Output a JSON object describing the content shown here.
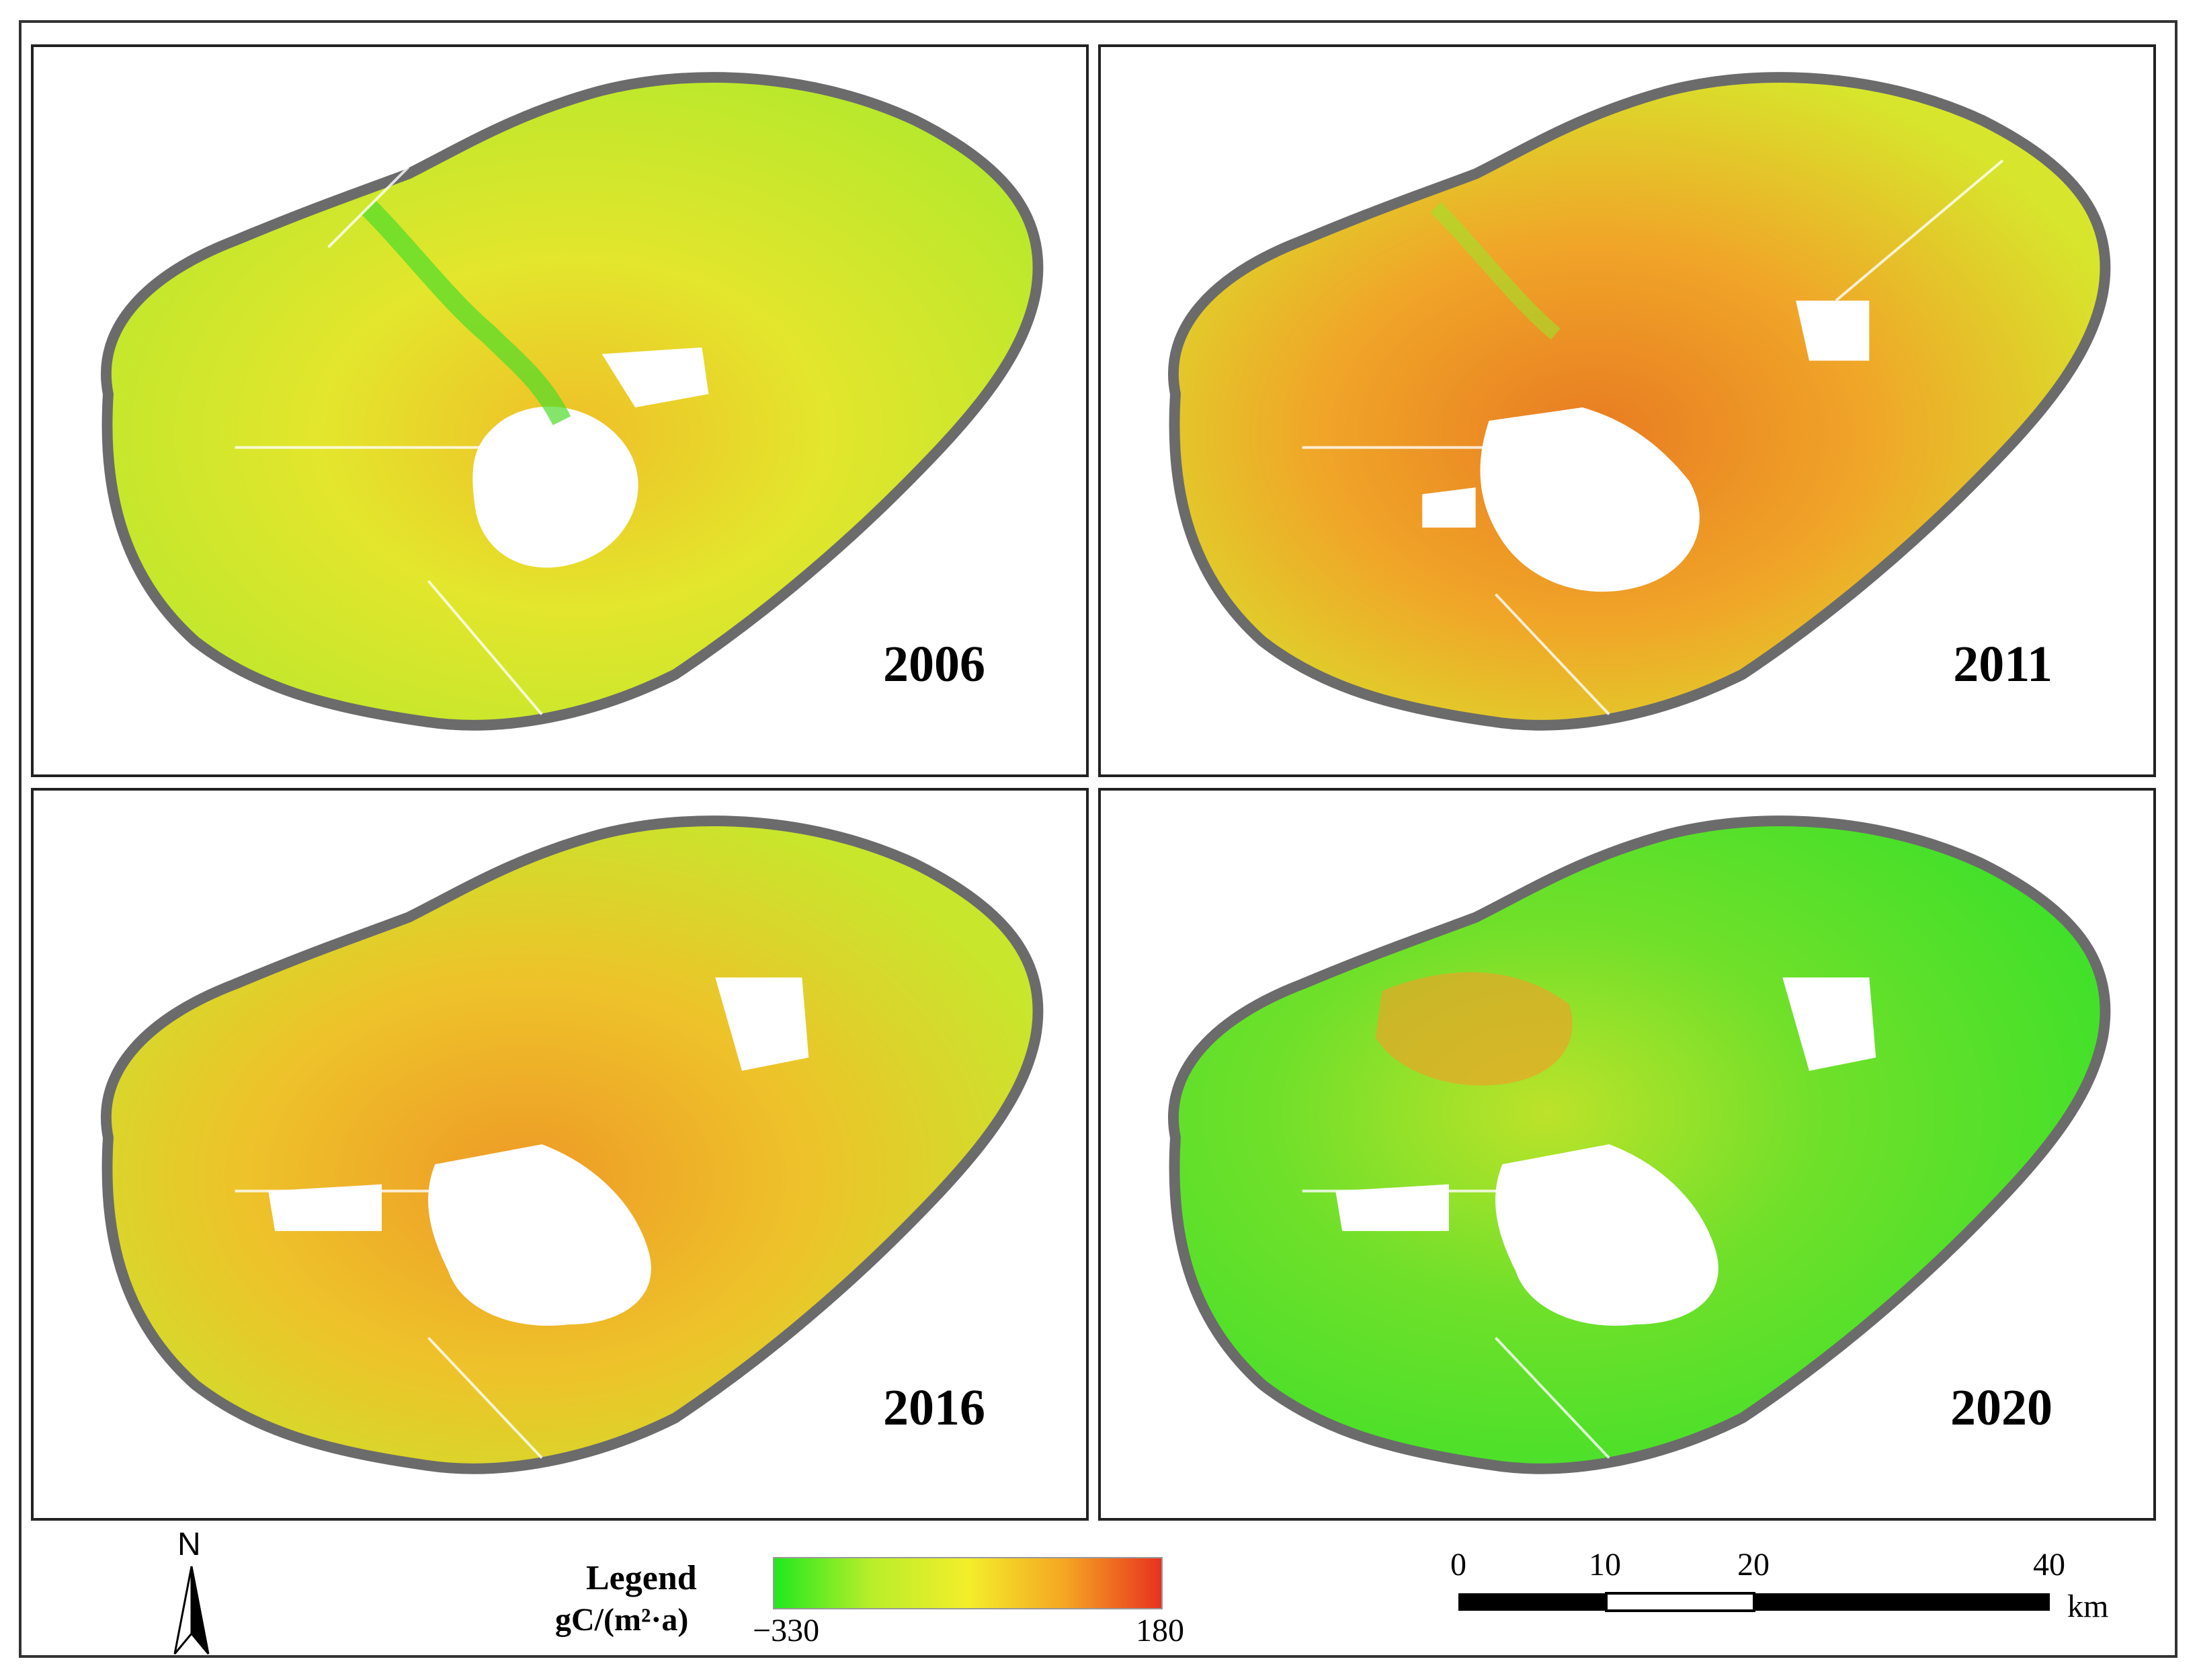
{
  "panels": [
    {
      "year": "2006",
      "dominant": "mixed-yellow-green"
    },
    {
      "year": "2011",
      "dominant": "orange"
    },
    {
      "year": "2016",
      "dominant": "yellow-orange"
    },
    {
      "year": "2020",
      "dominant": "green"
    }
  ],
  "north_arrow": {
    "label": "N"
  },
  "legend": {
    "title": "Legend",
    "unit": "gC/(m²·a)",
    "min_label": "−330",
    "max_label": "180",
    "colors": [
      "#22e81e",
      "#b9ee2a",
      "#f3ee2a",
      "#f5a623",
      "#e8321e"
    ]
  },
  "scale": {
    "ticks": [
      "0",
      "10",
      "20",
      "40"
    ],
    "unit": "km"
  },
  "colors": {
    "border_ring": "#6b6b6b",
    "green": "#6fe02a",
    "yellow": "#e6ea2a",
    "orange": "#f1a227",
    "red": "#d9361c"
  }
}
